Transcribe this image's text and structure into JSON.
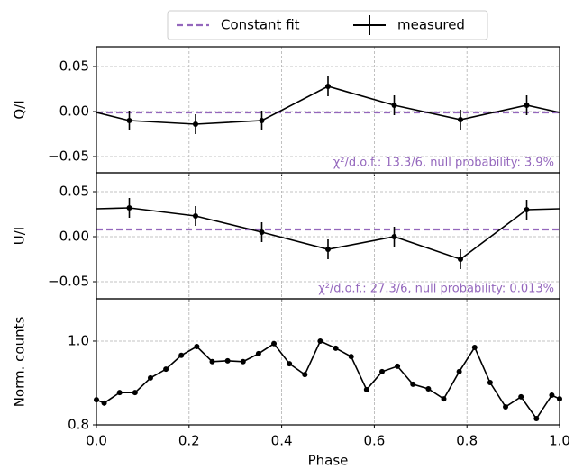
{
  "chart_data": [
    {
      "type": "line",
      "ylabel": "Q/I",
      "legend": "upper center",
      "grid": true,
      "xlim": [
        0,
        1
      ],
      "xticks": [
        0,
        0.2,
        0.4,
        0.6,
        0.8,
        1
      ],
      "ylim": [
        -0.068,
        0.072
      ],
      "yticks": [
        {
          "value": -0.05,
          "label": "−0.05"
        },
        {
          "value": 0,
          "label": "0.00"
        },
        {
          "value": 0.05,
          "label": "0.05"
        }
      ],
      "annotation": "χ²/d.o.f.: 13.3/6, null probability: 3.9%",
      "series": [
        {
          "name": "Constant fit",
          "color": "#9467bd",
          "linestyle": "dashed",
          "x": [
            0,
            1
          ],
          "values": [
            -0.001,
            -0.001
          ]
        },
        {
          "name": "measured",
          "color": "#000000",
          "linestyle": "solid",
          "marker": true,
          "x": [
            0,
            0.071,
            0.214,
            0.357,
            0.5,
            0.643,
            0.786,
            0.929,
            1
          ],
          "values": [
            -0.001,
            -0.01,
            -0.014,
            -0.01,
            0.028,
            0.007,
            -0.009,
            0.007,
            -0.001
          ],
          "errors": [
            null,
            0.011,
            0.011,
            0.011,
            0.011,
            0.011,
            0.011,
            0.011,
            null
          ]
        }
      ]
    },
    {
      "type": "line",
      "ylabel": "U/I",
      "grid": true,
      "xlim": [
        0,
        1
      ],
      "xticks": [
        0,
        0.2,
        0.4,
        0.6,
        0.8,
        1
      ],
      "ylim": [
        -0.069,
        0.071
      ],
      "yticks": [
        {
          "value": -0.05,
          "label": "−0.05"
        },
        {
          "value": 0,
          "label": "0.00"
        },
        {
          "value": 0.05,
          "label": "0.05"
        }
      ],
      "annotation": "χ²/d.o.f.: 27.3/6, null probability: 0.013%",
      "series": [
        {
          "color": "#9467bd",
          "linestyle": "dashed",
          "x": [
            0,
            1
          ],
          "values": [
            0.008,
            0.008
          ]
        },
        {
          "color": "#000000",
          "linestyle": "solid",
          "marker": true,
          "x": [
            0,
            0.071,
            0.214,
            0.357,
            0.5,
            0.643,
            0.786,
            0.929,
            1
          ],
          "values": [
            0.031,
            0.032,
            0.023,
            0.005,
            -0.014,
            0.0,
            -0.025,
            0.03,
            0.031
          ],
          "errors": [
            null,
            0.011,
            0.011,
            0.011,
            0.011,
            0.011,
            0.011,
            0.011,
            null
          ]
        }
      ]
    },
    {
      "type": "line",
      "ylabel": "Norm. counts",
      "xlabel": "Phase",
      "grid": true,
      "xlim": [
        0,
        1
      ],
      "xticks": [
        {
          "value": 0,
          "label": "0.0"
        },
        {
          "value": 0.2,
          "label": "0.2"
        },
        {
          "value": 0.4,
          "label": "0.4"
        },
        {
          "value": 0.6,
          "label": "0.6"
        },
        {
          "value": 0.8,
          "label": "0.8"
        },
        {
          "value": 1,
          "label": "1.0"
        }
      ],
      "ylim": [
        0.8,
        1.101
      ],
      "yticks": [
        {
          "value": 0.8,
          "label": "0.8"
        },
        {
          "value": 1,
          "label": "1.0"
        }
      ],
      "series": [
        {
          "color": "#000000",
          "linestyle": "solid",
          "marker": true,
          "x": [
            0,
            0.0167,
            0.05,
            0.0833,
            0.1167,
            0.15,
            0.1833,
            0.2167,
            0.25,
            0.2833,
            0.3167,
            0.35,
            0.3833,
            0.4167,
            0.45,
            0.4833,
            0.5167,
            0.55,
            0.5833,
            0.6167,
            0.65,
            0.6833,
            0.7167,
            0.75,
            0.7833,
            0.8167,
            0.85,
            0.8833,
            0.9167,
            0.95,
            0.9833,
            1
          ],
          "values": [
            0.86,
            0.852,
            0.877,
            0.877,
            0.912,
            0.933,
            0.966,
            0.987,
            0.951,
            0.953,
            0.951,
            0.97,
            0.994,
            0.946,
            0.92,
            1.0,
            0.983,
            0.963,
            0.884,
            0.927,
            0.94,
            0.897,
            0.886,
            0.862,
            0.927,
            0.985,
            0.901,
            0.843,
            0.867,
            0.815,
            0.871,
            0.862
          ]
        }
      ]
    }
  ]
}
